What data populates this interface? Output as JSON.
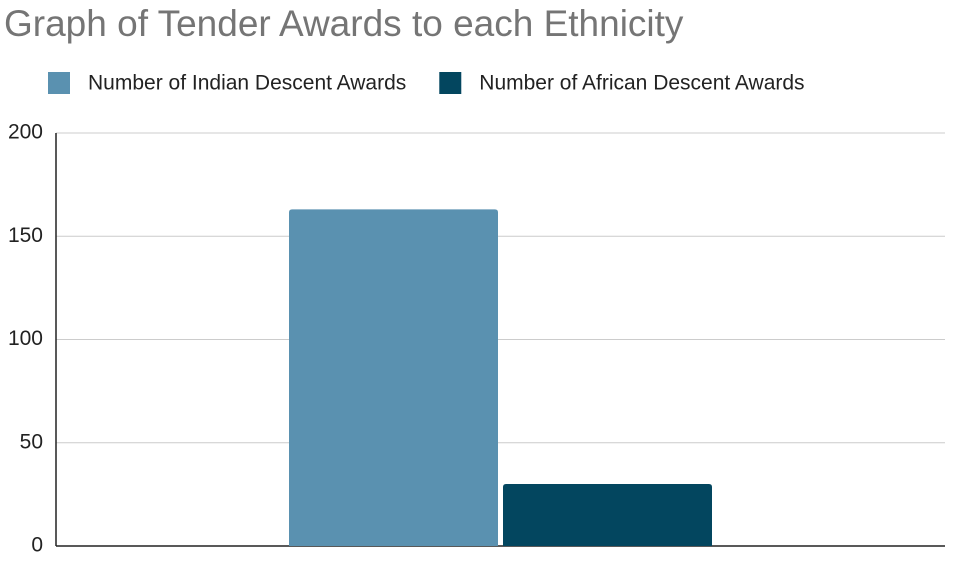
{
  "chart_data": {
    "type": "bar",
    "title": "Graph of Tender Awards to each Ethnicity",
    "categories": [
      null
    ],
    "series": [
      {
        "name": "Number of Indian Descent Awards",
        "color": "#5a91b0",
        "values": [
          163
        ]
      },
      {
        "name": "Number of African Descent Awards",
        "color": "#03465f",
        "values": [
          30
        ]
      }
    ],
    "ylim": [
      0,
      200
    ],
    "yticks": [
      0,
      50,
      100,
      150,
      200
    ],
    "grid": true,
    "legend": "top"
  }
}
